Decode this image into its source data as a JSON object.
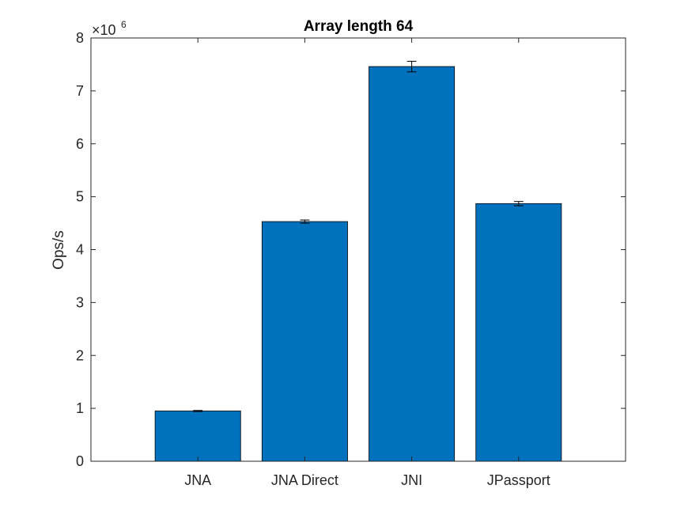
{
  "chart_data": {
    "type": "bar",
    "title": "Array length 64",
    "xlabel": "",
    "ylabel": "Ops/s",
    "y_exponent": {
      "base": "×10",
      "power": "6"
    },
    "categories": [
      "JNA",
      "JNA Direct",
      "JNI",
      "JPassport"
    ],
    "values": [
      0.95,
      4.53,
      7.46,
      4.87
    ],
    "errors": [
      0.01,
      0.03,
      0.1,
      0.04
    ],
    "ylim": [
      0,
      8
    ],
    "yticks": [
      0,
      1,
      2,
      3,
      4,
      5,
      6,
      7,
      8
    ],
    "xlim": [
      0,
      5
    ],
    "bar_color": "#0072BD",
    "grid": false,
    "legend": "none"
  }
}
